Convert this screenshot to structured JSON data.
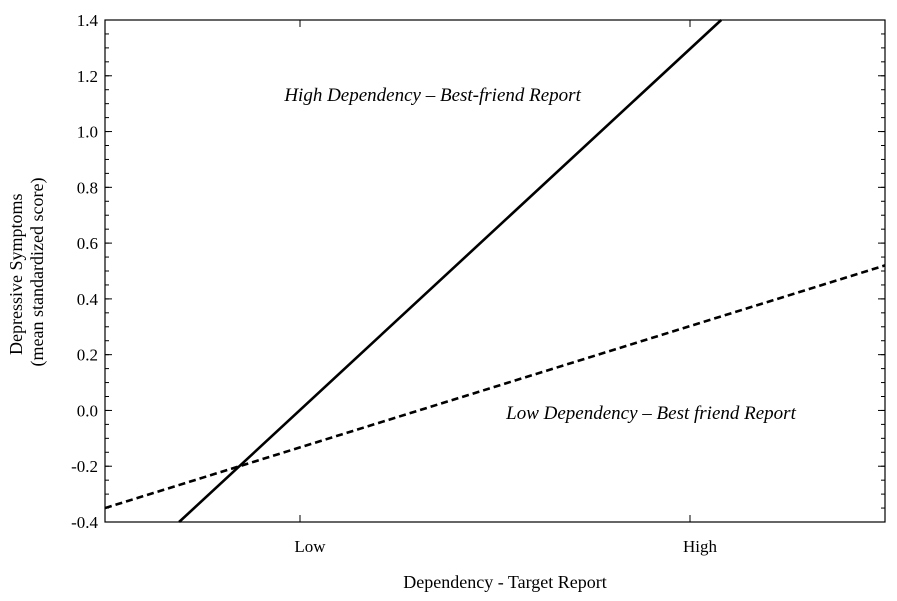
{
  "chart_data": {
    "type": "line",
    "title": "",
    "xlabel": "Dependency - Target Report",
    "ylabel_lines": [
      "Depressive Symptoms",
      "(mean standardized score)"
    ],
    "x_categories": [
      "Low",
      "High"
    ],
    "xlim": [
      -0.5,
      1.5
    ],
    "ylim": [
      -0.4,
      1.4
    ],
    "y_ticks": [
      "1.4",
      "1.2",
      "1.0",
      "0.8",
      "0.6",
      "0.4",
      "0.2",
      "0.0",
      "-0.2",
      "-0.4"
    ],
    "grid": false,
    "series": [
      {
        "name": "High Dependency – Best-friend Report",
        "style": "solid",
        "x": [
          -0.31,
          1.08
        ],
        "y": [
          -0.4,
          1.4
        ]
      },
      {
        "name": "Low Dependency – Best friend Report",
        "style": "dashed",
        "x": [
          -0.5,
          1.5
        ],
        "y": [
          -0.35,
          0.52
        ]
      }
    ],
    "annotations": [
      {
        "text": "High Dependency – Best-friend Report",
        "x": 0.34,
        "y": 1.11
      },
      {
        "text": "Low Dependency – Best friend Report",
        "x": 0.9,
        "y": -0.03
      }
    ]
  }
}
